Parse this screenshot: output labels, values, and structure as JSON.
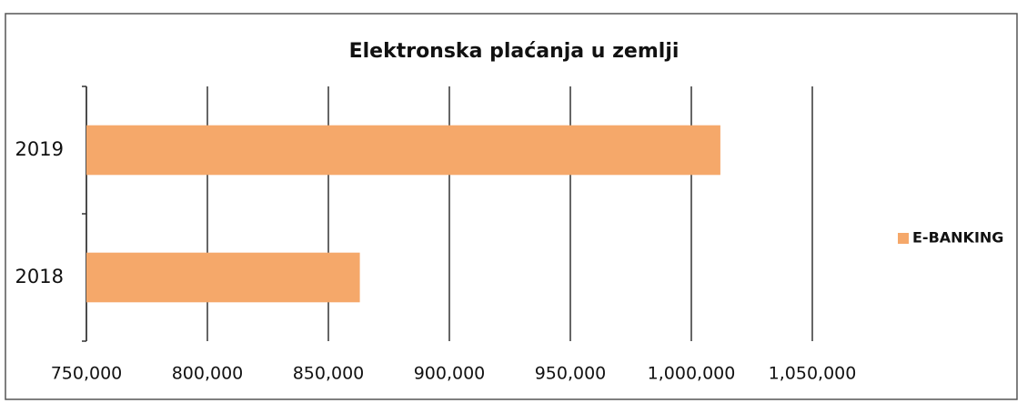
{
  "chart_data": {
    "type": "bar",
    "orientation": "horizontal",
    "title": "Elektronska plaćanja u zemlji",
    "categories": [
      "2018",
      "2019"
    ],
    "series": [
      {
        "name": "E-BANKING",
        "color": "#f5a86a",
        "values": [
          863000,
          1012000
        ]
      }
    ],
    "xlim": [
      750000,
      1050000
    ],
    "xticks": [
      {
        "value": 750000,
        "label": "750,000"
      },
      {
        "value": 800000,
        "label": "800,000"
      },
      {
        "value": 850000,
        "label": "850,000"
      },
      {
        "value": 900000,
        "label": "900,000"
      },
      {
        "value": 950000,
        "label": "950,000"
      },
      {
        "value": 1000000,
        "label": "1,000,000"
      },
      {
        "value": 1050000,
        "label": "1,050,000"
      }
    ],
    "grid": true,
    "legend": "right"
  }
}
